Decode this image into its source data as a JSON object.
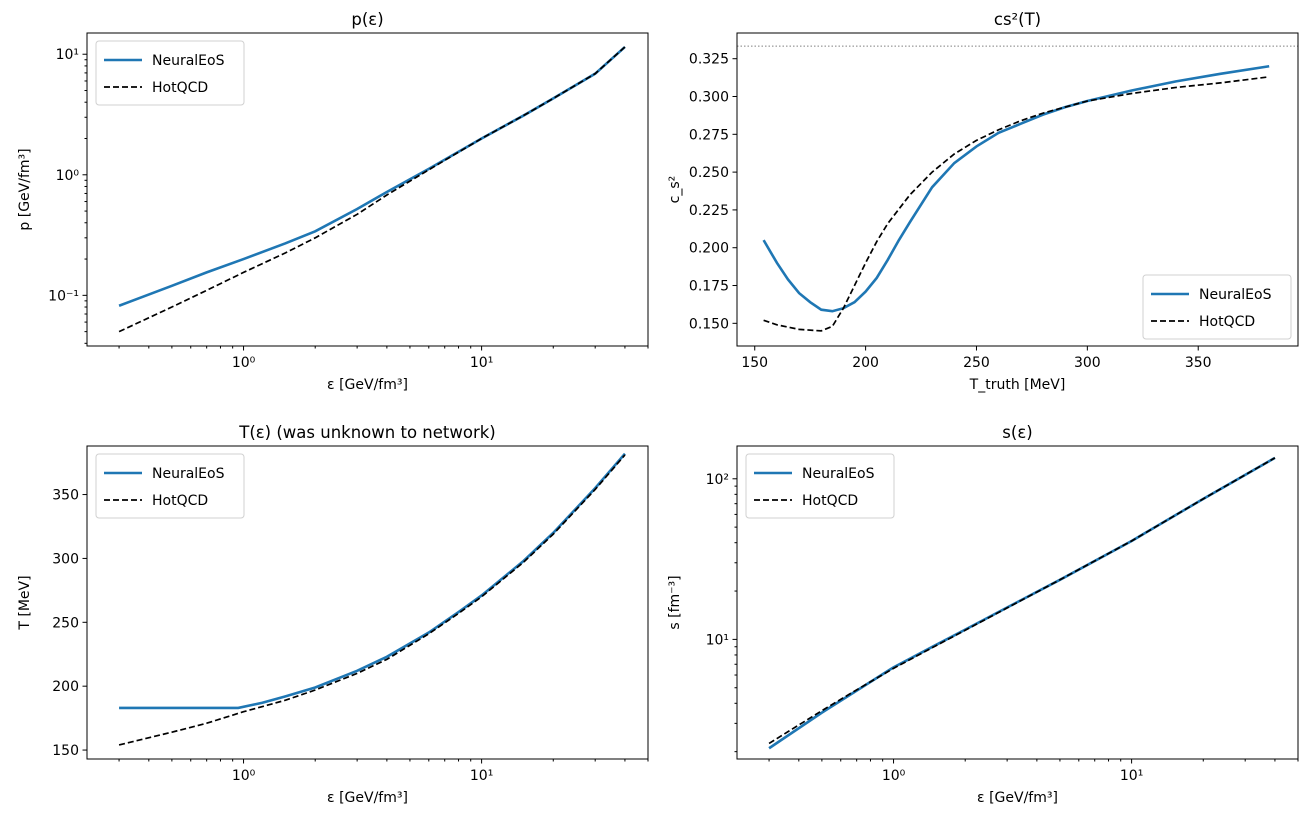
{
  "chart_data": [
    {
      "type": "line",
      "title": "p(ε)",
      "xlabel": "ε [GeV/fm³]",
      "ylabel": "p [GeV/fm³]",
      "xscale": "log",
      "yscale": "log",
      "xlim": [
        0.22,
        50
      ],
      "ylim": [
        0.038,
        15
      ],
      "xticks": [
        {
          "value": 1,
          "label": "10⁰"
        },
        {
          "value": 10,
          "label": "10¹"
        }
      ],
      "yticks": [
        {
          "value": 0.1,
          "label": "10⁻¹"
        },
        {
          "value": 1,
          "label": "10⁰"
        },
        {
          "value": 10,
          "label": "10¹"
        }
      ],
      "legend": "top-left",
      "series": [
        {
          "name": "NeuralEoS",
          "color": "#1f77b4",
          "style": "solid",
          "x": [
            0.3,
            0.5,
            0.7,
            1.0,
            1.5,
            2.0,
            3.0,
            4.0,
            6.0,
            10,
            15,
            20,
            30,
            40
          ],
          "y": [
            0.082,
            0.12,
            0.155,
            0.2,
            0.27,
            0.34,
            0.52,
            0.72,
            1.12,
            2.0,
            3.1,
            4.3,
            6.9,
            11.5
          ]
        },
        {
          "name": "HotQCD",
          "color": "#000000",
          "style": "dashed",
          "x": [
            0.3,
            0.5,
            0.7,
            1.0,
            1.5,
            2.0,
            3.0,
            4.0,
            6.0,
            10,
            15,
            20,
            30,
            40
          ],
          "y": [
            0.05,
            0.08,
            0.11,
            0.155,
            0.225,
            0.3,
            0.47,
            0.68,
            1.1,
            2.0,
            3.1,
            4.3,
            6.9,
            11.5
          ]
        }
      ]
    },
    {
      "type": "line",
      "title": "cs²(T)",
      "xlabel": "T_truth [MeV]",
      "ylabel": "c_s²",
      "xlim": [
        142,
        395
      ],
      "ylim": [
        0.135,
        0.342
      ],
      "xticks": [
        {
          "value": 150,
          "label": "150"
        },
        {
          "value": 200,
          "label": "200"
        },
        {
          "value": 250,
          "label": "250"
        },
        {
          "value": 300,
          "label": "300"
        },
        {
          "value": 350,
          "label": "350"
        }
      ],
      "yticks": [
        {
          "value": 0.15,
          "label": "0.150"
        },
        {
          "value": 0.175,
          "label": "0.175"
        },
        {
          "value": 0.2,
          "label": "0.200"
        },
        {
          "value": 0.225,
          "label": "0.225"
        },
        {
          "value": 0.25,
          "label": "0.250"
        },
        {
          "value": 0.275,
          "label": "0.275"
        },
        {
          "value": 0.3,
          "label": "0.300"
        },
        {
          "value": 0.325,
          "label": "0.325"
        }
      ],
      "reference_line_y": 0.3333,
      "legend": "bottom-right",
      "series": [
        {
          "name": "NeuralEoS",
          "color": "#1f77b4",
          "style": "solid",
          "x": [
            154,
            160,
            165,
            170,
            175,
            180,
            185,
            190,
            195,
            200,
            205,
            210,
            215,
            220,
            230,
            240,
            250,
            260,
            270,
            280,
            290,
            300,
            320,
            340,
            360,
            382
          ],
          "y": [
            0.205,
            0.19,
            0.179,
            0.17,
            0.164,
            0.159,
            0.158,
            0.16,
            0.164,
            0.171,
            0.18,
            0.192,
            0.205,
            0.217,
            0.24,
            0.256,
            0.267,
            0.276,
            0.282,
            0.288,
            0.293,
            0.297,
            0.304,
            0.31,
            0.315,
            0.32
          ]
        },
        {
          "name": "HotQCD",
          "color": "#000000",
          "style": "dashed",
          "x": [
            154,
            160,
            170,
            180,
            185,
            190,
            195,
            200,
            205,
            210,
            220,
            230,
            240,
            250,
            260,
            270,
            280,
            290,
            300,
            320,
            340,
            360,
            382
          ],
          "y": [
            0.152,
            0.149,
            0.146,
            0.145,
            0.148,
            0.16,
            0.175,
            0.19,
            0.204,
            0.216,
            0.235,
            0.25,
            0.262,
            0.271,
            0.278,
            0.284,
            0.289,
            0.293,
            0.297,
            0.302,
            0.306,
            0.309,
            0.313
          ]
        }
      ]
    },
    {
      "type": "line",
      "title": "T(ε)  (was unknown to network)",
      "xlabel": "ε [GeV/fm³]",
      "ylabel": "T [MeV]",
      "xscale": "log",
      "xlim": [
        0.22,
        50
      ],
      "ylim": [
        143,
        388
      ],
      "xticks": [
        {
          "value": 1,
          "label": "10⁰"
        },
        {
          "value": 10,
          "label": "10¹"
        }
      ],
      "yticks": [
        {
          "value": 150,
          "label": "150"
        },
        {
          "value": 200,
          "label": "200"
        },
        {
          "value": 250,
          "label": "250"
        },
        {
          "value": 300,
          "label": "300"
        },
        {
          "value": 350,
          "label": "350"
        }
      ],
      "legend": "top-left",
      "series": [
        {
          "name": "NeuralEoS",
          "color": "#1f77b4",
          "style": "solid",
          "x": [
            0.3,
            0.5,
            0.7,
            0.95,
            1.2,
            1.5,
            2.0,
            3.0,
            4.0,
            6.0,
            8.0,
            10,
            15,
            20,
            30,
            40
          ],
          "y": [
            183,
            183,
            183,
            183,
            187,
            192,
            199,
            212,
            223,
            242,
            258,
            271,
            298,
            320,
            355,
            382
          ]
        },
        {
          "name": "HotQCD",
          "color": "#000000",
          "style": "dashed",
          "x": [
            0.3,
            0.5,
            0.7,
            1.0,
            1.5,
            2.0,
            3.0,
            4.0,
            6.0,
            8.0,
            10,
            15,
            20,
            30,
            40
          ],
          "y": [
            154,
            164,
            171,
            180,
            189,
            197,
            210,
            221,
            241,
            257,
            270,
            297,
            319,
            354,
            381
          ]
        }
      ]
    },
    {
      "type": "line",
      "title": "s(ε)",
      "xlabel": "ε [GeV/fm³]",
      "ylabel": "s [fm⁻³]",
      "xscale": "log",
      "yscale": "log",
      "xlim": [
        0.22,
        50
      ],
      "ylim": [
        1.8,
        160
      ],
      "xticks": [
        {
          "value": 1,
          "label": "10⁰"
        },
        {
          "value": 10,
          "label": "10¹"
        }
      ],
      "yticks": [
        {
          "value": 10,
          "label": "10¹"
        },
        {
          "value": 100,
          "label": "10²"
        }
      ],
      "legend": "top-left",
      "series": [
        {
          "name": "NeuralEoS",
          "color": "#1f77b4",
          "style": "solid",
          "x": [
            0.3,
            0.5,
            0.7,
            1.0,
            1.5,
            2.0,
            3.0,
            5.0,
            10,
            20,
            40
          ],
          "y": [
            2.1,
            3.5,
            4.8,
            6.7,
            9.2,
            11.5,
            15.8,
            23.5,
            41,
            75,
            135
          ]
        },
        {
          "name": "HotQCD",
          "color": "#000000",
          "style": "dashed",
          "x": [
            0.3,
            0.5,
            0.7,
            1.0,
            1.5,
            2.0,
            3.0,
            5.0,
            10,
            20,
            40
          ],
          "y": [
            2.25,
            3.6,
            4.85,
            6.6,
            9.1,
            11.4,
            15.7,
            23.5,
            41,
            75,
            135
          ]
        }
      ]
    }
  ]
}
